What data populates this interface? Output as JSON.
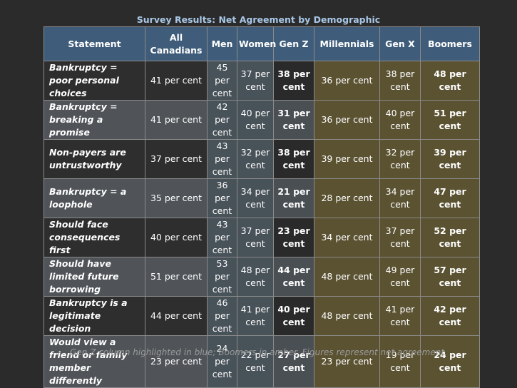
{
  "title": "Survey Results: Net Agreement by Demographic",
  "footnote": "Gen Z column highlighted in blue; Boomers in amber. Figures represent net agreement.",
  "chart_data": {
    "type": "table",
    "columns": [
      "Statement",
      "All Canadians",
      "Men",
      "Women",
      "Gen Z",
      "Millennials",
      "Gen X",
      "Boomers"
    ],
    "rows": [
      {
        "statement": "Bankruptcy = poor personal choices",
        "cells": [
          "41 per cent",
          "45 per cent",
          "37 per cent",
          "38 per cent",
          "36 per cent",
          "38 per cent",
          "48 per cent"
        ]
      },
      {
        "statement": "Bankruptcy = breaking a promise",
        "cells": [
          "41 per cent",
          "42 per cent",
          "40 per cent",
          "31 per cent",
          "36 per cent",
          "40 per cent",
          "51 per cent"
        ]
      },
      {
        "statement": "Non-payers are untrustworthy",
        "cells": [
          "37 per cent",
          "43 per cent",
          "32 per cent",
          "38 per cent",
          "39 per cent",
          "32 per cent",
          "39 per cent"
        ]
      },
      {
        "statement": "Bankruptcy = a loophole",
        "cells": [
          "35 per cent",
          "36 per cent",
          "34 per cent",
          "21 per cent",
          "28 per cent",
          "34 per cent",
          "47 per cent"
        ]
      },
      {
        "statement": "Should face consequences first",
        "cells": [
          "40 per cent",
          "43 per cent",
          "37 per cent",
          "23 per cent",
          "34 per cent",
          "37 per cent",
          "52 per cent"
        ]
      },
      {
        "statement": "Should have limited future borrowing",
        "cells": [
          "51 per cent",
          "53 per cent",
          "48 per cent",
          "44 per cent",
          "48 per cent",
          "49 per cent",
          "57 per cent"
        ]
      },
      {
        "statement": "Bankruptcy is a legitimate decision",
        "cells": [
          "44 per cent",
          "46 per cent",
          "41 per cent",
          "40 per cent",
          "48 per cent",
          "41 per cent",
          "42 per cent"
        ]
      },
      {
        "statement": "Would view a friend or family member differently",
        "cells": [
          "23 per cent",
          "24 per cent",
          "22 per cent",
          "27 per cent",
          "23 per cent",
          "19 per cent",
          "24 per cent"
        ]
      }
    ]
  }
}
